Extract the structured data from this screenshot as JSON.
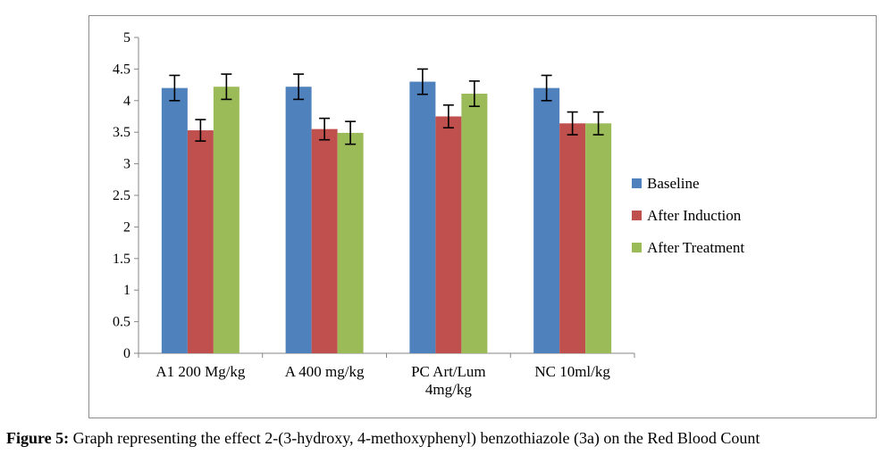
{
  "chart_data": {
    "type": "bar",
    "categories": [
      [
        "A1 200 Mg/kg"
      ],
      [
        "A 400 mg/kg"
      ],
      [
        "PC Art/Lum",
        "4mg/kg"
      ],
      [
        "NC 10ml/kg"
      ]
    ],
    "series": [
      {
        "name": "Baseline",
        "color": "#4f81bd",
        "values": [
          4.2,
          4.22,
          4.3,
          4.2
        ],
        "errors": [
          0.2,
          0.2,
          0.2,
          0.2
        ]
      },
      {
        "name": "After Induction",
        "color": "#c0504d",
        "values": [
          3.53,
          3.55,
          3.75,
          3.64
        ],
        "errors": [
          0.17,
          0.17,
          0.18,
          0.18
        ]
      },
      {
        "name": "After Treatment",
        "color": "#9bbb59",
        "values": [
          4.22,
          3.49,
          4.11,
          3.64
        ],
        "errors": [
          0.2,
          0.18,
          0.2,
          0.18
        ]
      }
    ],
    "ylim": [
      0,
      5
    ],
    "yticks": [
      "0",
      "0.5",
      "1",
      "1.5",
      "2",
      "2.5",
      "3",
      "3.5",
      "4",
      "4.5",
      "5"
    ],
    "legend_position": "right",
    "grid": false
  },
  "caption": {
    "label": "Figure 5:",
    "text": " Graph representing the effect 2-(3-hydroxy, 4-methoxyphenyl) benzothiazole (3a) on the Red Blood Count"
  }
}
